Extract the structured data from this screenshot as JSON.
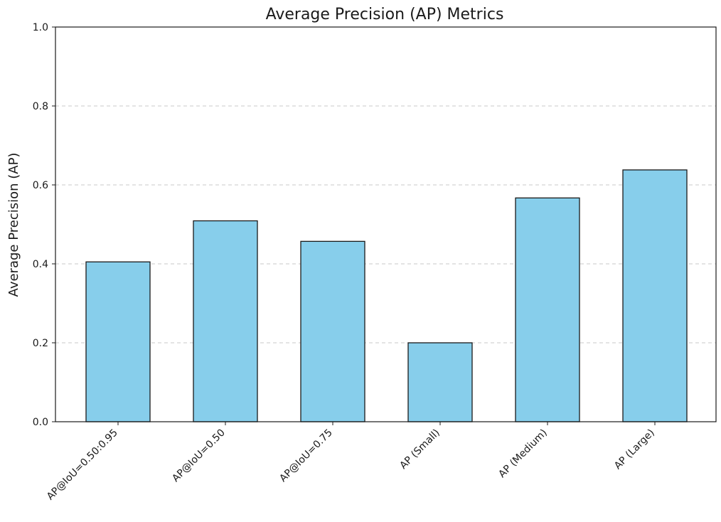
{
  "chart_data": {
    "type": "bar",
    "title": "Average Precision (AP) Metrics",
    "xlabel": "",
    "ylabel": "Average Precision (AP)",
    "categories": [
      "AP@IoU=0.50:0.95",
      "AP@IoU=0.50",
      "AP@IoU=0.75",
      "AP (Small)",
      "AP (Medium)",
      "AP (Large)"
    ],
    "values": [
      0.405,
      0.509,
      0.457,
      0.2,
      0.567,
      0.638
    ],
    "ylim": [
      0,
      1.0
    ],
    "yticks": [
      "0.0",
      "0.2",
      "0.4",
      "0.6",
      "0.8",
      "1.0"
    ],
    "grid": "y-dashed",
    "colors": {
      "bar_fill": "#87ceeb",
      "bar_edge": "#1a1a1a",
      "grid": "#c8c8c8",
      "axis": "#1a1a1a"
    }
  }
}
